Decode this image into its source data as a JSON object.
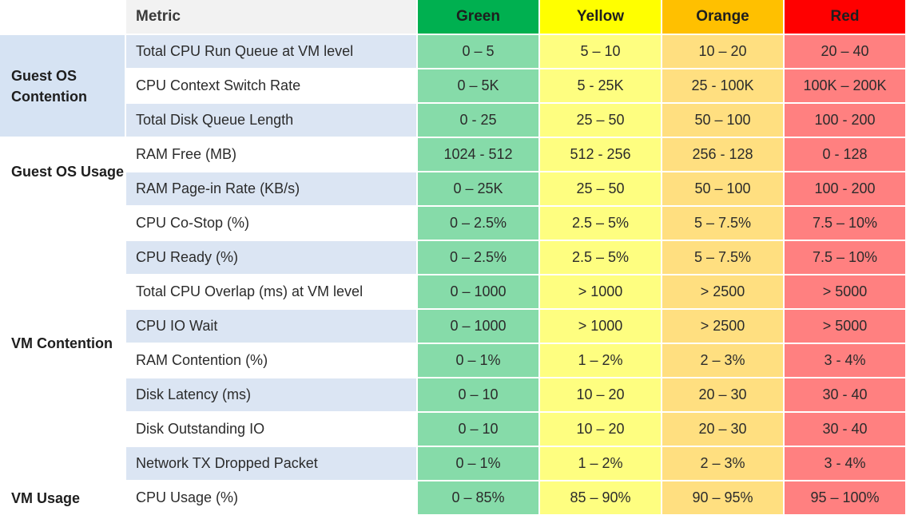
{
  "header": {
    "metric": "Metric",
    "green": "Green",
    "yellow": "Yellow",
    "orange": "Orange",
    "red": "Red"
  },
  "colors": {
    "green": "#00b050",
    "yellow": "#ffff00",
    "orange": "#ffc000",
    "red": "#ff0000"
  },
  "groups": {
    "guest_os_contention": "Guest OS Contention",
    "guest_os_usage": "Guest OS Usage",
    "vm_contention": "VM Contention",
    "vm_usage": "VM Usage"
  },
  "rows": [
    {
      "metric": "Total CPU Run Queue at VM level",
      "green": "0 – 5",
      "yellow": "5 – 10",
      "orange": "10 – 20",
      "red": "20 – 40"
    },
    {
      "metric": "CPU Context Switch Rate",
      "green": "0 – 5K",
      "yellow": "5 - 25K",
      "orange": "25 - 100K",
      "red": "100K – 200K"
    },
    {
      "metric": "Total Disk Queue Length",
      "green": "0 - 25",
      "yellow": "25 – 50",
      "orange": "50 – 100",
      "red": "100 - 200"
    },
    {
      "metric": "RAM Free (MB)",
      "green": "1024 - 512",
      "yellow": "512 - 256",
      "orange": "256 - 128",
      "red": "0 - 128"
    },
    {
      "metric": "RAM Page-in Rate (KB/s)",
      "green": "0 – 25K",
      "yellow": "25 – 50",
      "orange": "50 – 100",
      "red": "100 - 200"
    },
    {
      "metric": "CPU Co-Stop (%)",
      "green": "0 – 2.5%",
      "yellow": "2.5 – 5%",
      "orange": "5 – 7.5%",
      "red": "7.5 – 10%"
    },
    {
      "metric": "CPU Ready (%)",
      "green": "0 – 2.5%",
      "yellow": "2.5 – 5%",
      "orange": "5 – 7.5%",
      "red": "7.5 – 10%"
    },
    {
      "metric": "Total CPU Overlap (ms) at VM level",
      "green": "0 – 1000",
      "yellow": "> 1000",
      "orange": "> 2500",
      "red": "> 5000"
    },
    {
      "metric": "CPU IO Wait",
      "green": "0 – 1000",
      "yellow": "> 1000",
      "orange": "> 2500",
      "red": "> 5000"
    },
    {
      "metric": "RAM Contention (%)",
      "green": "0 – 1%",
      "yellow": "1 – 2%",
      "orange": "2 – 3%",
      "red": "3 - 4%"
    },
    {
      "metric": "Disk Latency (ms)",
      "green": "0 – 10",
      "yellow": "10 – 20",
      "orange": "20 – 30",
      "red": "30 - 40"
    },
    {
      "metric": "Disk Outstanding IO",
      "green": "0 – 10",
      "yellow": "10 – 20",
      "orange": "20 – 30",
      "red": "30 - 40"
    },
    {
      "metric": "Network TX Dropped Packet",
      "green": "0 – 1%",
      "yellow": "1 – 2%",
      "orange": "2 – 3%",
      "red": "3 - 4%"
    },
    {
      "metric": "CPU Usage (%)",
      "green": "0 – 85%",
      "yellow": "85 – 90%",
      "orange": "90 – 95%",
      "red": "95 – 100%"
    }
  ]
}
